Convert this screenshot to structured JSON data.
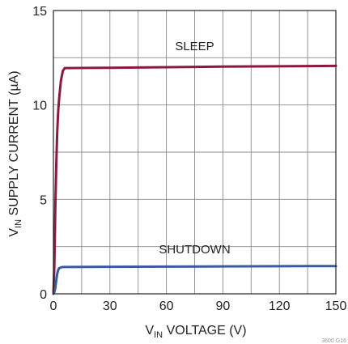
{
  "chart_data": {
    "type": "line",
    "title": "",
    "xlabel": {
      "main": "V",
      "sub": "IN",
      "rest": " VOLTAGE (V)"
    },
    "ylabel": {
      "main": "V",
      "sub": "IN",
      "rest": " SUPPLY CURRENT (µA)"
    },
    "xlim": [
      0,
      150
    ],
    "ylim": [
      0,
      15
    ],
    "xticks": [
      0,
      30,
      60,
      90,
      120,
      150
    ],
    "yticks": [
      0,
      5,
      10,
      15
    ],
    "grid": true,
    "series": [
      {
        "name": "SLEEP",
        "color": "#8b1a3d",
        "x": [
          0,
          0.5,
          1,
          1.5,
          2,
          2.5,
          3,
          4,
          5,
          6,
          30,
          60,
          90,
          120,
          150
        ],
        "y": [
          0,
          1.5,
          4.5,
          6.8,
          8.5,
          9.6,
          10.3,
          11.3,
          11.8,
          11.95,
          11.97,
          12.0,
          12.03,
          12.05,
          12.07
        ]
      },
      {
        "name": "SHUTDOWN",
        "color": "#3b5aa3",
        "x": [
          0,
          0.5,
          1,
          1.5,
          2,
          2.5,
          3,
          4,
          5,
          30,
          60,
          90,
          120,
          150
        ],
        "y": [
          0,
          0.1,
          0.3,
          0.7,
          1.05,
          1.25,
          1.35,
          1.4,
          1.42,
          1.43,
          1.44,
          1.45,
          1.46,
          1.47
        ]
      }
    ],
    "annotations": [
      {
        "text": "SLEEP",
        "x": 75,
        "y": 12.9
      },
      {
        "text": "SHUTDOWN",
        "x": 75,
        "y": 2.15
      }
    ],
    "watermark": "3600 G16"
  }
}
